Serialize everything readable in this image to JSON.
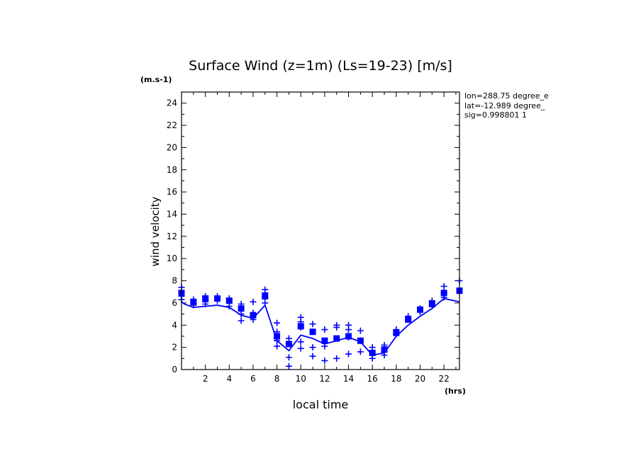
{
  "chart_data": {
    "type": "scatter",
    "title": "Surface Wind (z=1m) (Ls=19-23) [m/s]",
    "ylabel": "wind velocity",
    "y_unit": "(m.s-1)",
    "xlabel": "local time",
    "x_unit": "(hrs)",
    "xlim": [
      0,
      23.3
    ],
    "ylim": [
      0,
      25
    ],
    "x_ticks": [
      2,
      4,
      6,
      8,
      10,
      12,
      14,
      16,
      18,
      20,
      22
    ],
    "y_ticks": [
      0,
      2,
      4,
      6,
      8,
      10,
      12,
      14,
      16,
      18,
      20,
      22,
      24
    ],
    "annotations": [
      "lon=288.75 degree_e",
      "lat=-12.989 degree_",
      "sig=0.998801 1"
    ],
    "color": "#0000ff",
    "series": [
      {
        "kind": "line",
        "x": [
          0.0,
          0.25,
          1.0,
          2.0,
          3.0,
          4.0,
          5.0,
          6.0,
          7.0,
          8.0,
          9.0,
          10.0,
          11.0,
          12.0,
          13.0,
          14.0,
          15.0,
          16.0,
          17.0,
          18.0,
          19.0,
          20.0,
          21.0,
          22.0,
          23.3
        ],
        "y": [
          6.1,
          5.9,
          5.6,
          5.7,
          5.8,
          5.6,
          4.9,
          4.6,
          5.8,
          2.6,
          1.7,
          3.1,
          2.8,
          2.3,
          2.6,
          2.9,
          2.5,
          1.3,
          1.5,
          3.0,
          4.0,
          4.8,
          5.5,
          6.4,
          6.1
        ]
      },
      {
        "kind": "markers",
        "x": [
          0,
          0,
          0,
          0,
          1,
          1,
          1,
          2,
          2,
          2,
          2,
          3,
          3,
          3,
          4,
          4,
          4,
          5,
          5,
          5,
          5,
          6,
          6,
          6,
          6,
          7,
          7,
          7,
          7,
          8,
          8,
          8,
          8,
          9,
          9,
          9,
          9,
          10,
          10,
          10,
          10,
          10,
          11,
          11,
          11,
          11,
          12,
          12,
          12,
          12,
          13,
          13,
          13,
          13,
          14,
          14,
          14,
          14,
          15,
          15,
          15,
          16,
          16,
          16,
          17,
          17,
          17,
          18,
          18,
          19,
          19,
          20,
          20,
          21,
          21,
          22,
          22,
          22,
          23.3,
          23.3
        ],
        "y": [
          7.4,
          6.9,
          6.6,
          6.3,
          6.3,
          6.0,
          5.8,
          6.6,
          6.3,
          6.1,
          5.9,
          6.6,
          6.4,
          6.2,
          6.4,
          6.1,
          5.7,
          5.9,
          5.5,
          5.0,
          4.4,
          6.1,
          5.1,
          4.8,
          4.5,
          7.2,
          6.9,
          6.5,
          6.0,
          4.2,
          3.4,
          2.6,
          2.1,
          2.8,
          2.3,
          1.1,
          0.3,
          4.7,
          4.3,
          3.8,
          2.5,
          1.9,
          4.1,
          3.4,
          2.0,
          1.2,
          3.6,
          2.6,
          2.1,
          0.8,
          4.0,
          3.8,
          2.8,
          1.0,
          4.0,
          3.6,
          2.9,
          1.4,
          3.5,
          2.6,
          1.6,
          2.0,
          1.4,
          1.0,
          2.2,
          1.6,
          1.3,
          3.6,
          3.2,
          4.8,
          4.5,
          5.5,
          5.2,
          6.2,
          5.8,
          7.5,
          6.9,
          6.5,
          8.0,
          7.1
        ]
      },
      {
        "kind": "squares",
        "x": [
          0,
          1,
          2,
          3,
          4,
          5,
          6,
          7,
          8,
          9,
          10,
          11,
          12,
          13,
          14,
          15,
          16,
          17,
          18,
          19,
          20,
          21,
          22,
          23.3
        ],
        "y": [
          6.9,
          6.1,
          6.4,
          6.4,
          6.2,
          5.5,
          4.9,
          6.6,
          3.0,
          2.3,
          3.9,
          3.4,
          2.6,
          2.8,
          3.0,
          2.6,
          1.5,
          1.8,
          3.3,
          4.5,
          5.4,
          5.9,
          6.9,
          7.1
        ]
      }
    ]
  }
}
